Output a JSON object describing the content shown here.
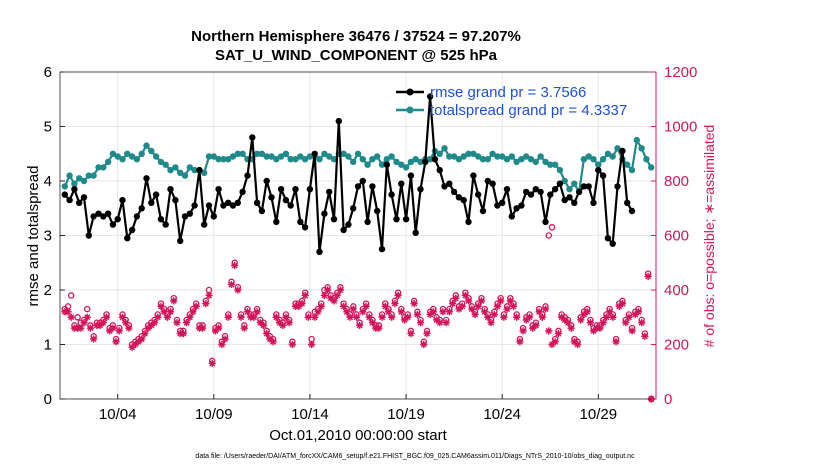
{
  "chart_data": {
    "type": "line",
    "title": "Northern Hemisphere 36476 / 37524 = 97.207%",
    "subtitle": "SAT_U_WIND_COMPONENT @ 525 hPa",
    "xlabel": "Oct.01,2010 00:00:00 start",
    "ylabel": "rmse and totalspread",
    "y2label": "# of obs: o=possible; ∗=assimilated",
    "footnote": "data file: /Users/raeder/DAI/ATM_forcXX/CAM6_setup/f.e21.FHIST_BGC.f09_025.CAM6assim.011/Diags_NTrS_2010-10/obs_diag_output.nc",
    "xlim": [
      1,
      32
    ],
    "ylim": [
      0,
      6
    ],
    "y2lim": [
      0,
      1200
    ],
    "x_ticks": [
      4,
      9,
      14,
      19,
      24,
      29
    ],
    "x_tick_labels": [
      "10/04",
      "10/09",
      "10/14",
      "10/19",
      "10/24",
      "10/29"
    ],
    "y_ticks": [
      0,
      1,
      2,
      3,
      4,
      5,
      6
    ],
    "y2_ticks": [
      0,
      200,
      400,
      600,
      800,
      1000,
      1200
    ],
    "grid": true,
    "legend_position": "top-right",
    "x_start": 1.25,
    "x_step": 0.25,
    "series": [
      {
        "name": "rmse grand pr = 3.7566",
        "color": "#000000",
        "marker": "filled-circle",
        "axis": "left",
        "values": [
          3.75,
          3.65,
          3.85,
          3.6,
          3.7,
          3.0,
          3.35,
          3.4,
          3.35,
          3.4,
          3.2,
          3.3,
          3.65,
          2.95,
          3.1,
          3.35,
          3.5,
          4.05,
          3.6,
          3.75,
          3.3,
          3.2,
          3.85,
          3.65,
          2.9,
          3.35,
          3.4,
          3.55,
          4.2,
          3.2,
          3.55,
          3.35,
          3.85,
          3.55,
          3.6,
          3.55,
          3.6,
          3.8,
          4.1,
          4.8,
          3.6,
          3.45,
          4.0,
          3.7,
          3.25,
          3.85,
          3.65,
          3.55,
          3.85,
          3.25,
          3.15,
          3.85,
          4.5,
          2.7,
          3.4,
          3.8,
          3.3,
          5.1,
          3.1,
          3.2,
          3.5,
          3.9,
          4.0,
          3.25,
          3.9,
          3.45,
          2.75,
          4.3,
          3.75,
          3.3,
          3.95,
          3.3,
          4.1,
          3.05,
          3.85,
          4.35,
          5.55,
          4.4,
          4.2,
          3.9,
          3.95,
          3.8,
          3.7,
          3.65,
          3.25,
          4.1,
          3.75,
          3.45,
          4.0,
          3.95,
          3.55,
          3.6,
          3.85,
          3.35,
          3.5,
          3.55,
          3.8,
          3.75,
          3.85,
          3.8,
          3.25,
          3.75,
          3.85,
          3.95,
          3.65,
          3.7,
          3.6,
          3.8,
          3.9,
          3.9,
          3.6,
          4.2,
          4.1,
          2.95,
          2.85,
          3.9,
          4.55,
          3.6,
          3.45
        ]
      },
      {
        "name": "totalspread grand pr = 4.3337",
        "color": "#1e8a8a",
        "marker": "filled-circle",
        "axis": "left",
        "values": [
          3.9,
          4.1,
          3.95,
          4.05,
          4.0,
          4.1,
          4.1,
          4.25,
          4.25,
          4.35,
          4.5,
          4.45,
          4.4,
          4.5,
          4.45,
          4.4,
          4.5,
          4.65,
          4.55,
          4.45,
          4.35,
          4.3,
          4.2,
          4.25,
          4.15,
          4.1,
          4.25,
          4.2,
          4.2,
          4.15,
          4.45,
          4.45,
          4.4,
          4.4,
          4.4,
          4.45,
          4.5,
          4.5,
          4.4,
          4.4,
          4.5,
          4.5,
          4.45,
          4.45,
          4.4,
          4.45,
          4.5,
          4.4,
          4.4,
          4.45,
          4.4,
          4.45,
          4.45,
          4.4,
          4.5,
          4.45,
          4.4,
          4.5,
          4.5,
          4.45,
          4.35,
          4.5,
          4.4,
          4.3,
          4.4,
          4.45,
          4.3,
          4.4,
          4.45,
          4.35,
          4.3,
          4.25,
          4.35,
          4.4,
          4.35,
          4.4,
          4.4,
          4.55,
          4.5,
          4.6,
          4.45,
          4.45,
          4.4,
          4.45,
          4.5,
          4.5,
          4.45,
          4.4,
          4.4,
          4.5,
          4.45,
          4.45,
          4.4,
          4.45,
          4.35,
          4.4,
          4.45,
          4.4,
          4.35,
          4.45,
          4.35,
          4.3,
          4.3,
          4.2,
          4.0,
          3.85,
          3.95,
          3.8,
          4.4,
          4.45,
          4.4,
          4.3,
          4.4,
          4.5,
          4.45,
          4.6,
          4.4,
          4.3,
          4.2,
          4.75,
          4.6,
          4.4,
          4.25
        ]
      },
      {
        "name": "# of obs assimilated",
        "color": "#d4145a",
        "marker": "asterisk",
        "axis": "right",
        "values": [
          320,
          320,
          300,
          260,
          260,
          260,
          280,
          300,
          260,
          220,
          270,
          270,
          280,
          300,
          250,
          260,
          210,
          250,
          300,
          280,
          260,
          190,
          200,
          210,
          220,
          240,
          260,
          270,
          280,
          300,
          340,
          320,
          300,
          320,
          360,
          280,
          240,
          240,
          280,
          300,
          320,
          340,
          260,
          260,
          350,
          380,
          130,
          250,
          260,
          200,
          220,
          300,
          420,
          490,
          400,
          300,
          260,
          320,
          300,
          300,
          320,
          280,
          270,
          240,
          220,
          210,
          300,
          280,
          270,
          300,
          280,
          200,
          340,
          340,
          350,
          380,
          300,
          200,
          300,
          320,
          340,
          380,
          400,
          370,
          360,
          380,
          400,
          340,
          320,
          300,
          330,
          300,
          270,
          320,
          340,
          300,
          280,
          260,
          260,
          300,
          340,
          320,
          300,
          350,
          380,
          320,
          290,
          300,
          240,
          350,
          310,
          280,
          200,
          240,
          310,
          320,
          290,
          280,
          320,
          280,
          320,
          350,
          370,
          330,
          340,
          380,
          360,
          330,
          310,
          340,
          360,
          320,
          300,
          280,
          310,
          340,
          360,
          300,
          330,
          360,
          340,
          300,
          210,
          250,
          290,
          300,
          260,
          270,
          320,
          300,
          330,
          250,
          200,
          210,
          240,
          300,
          290,
          280,
          260,
          210,
          200,
          290,
          310,
          320,
          280,
          250,
          260,
          260,
          280,
          300,
          320,
          300,
          210,
          340,
          350,
          280,
          300,
          250,
          310,
          320,
          280,
          230,
          450,
          0
        ],
        "x_start": 1.25,
        "x_step": 0.1667
      },
      {
        "name": "# of obs possible",
        "color": "#d4145a",
        "marker": "open-circle",
        "axis": "right",
        "values": [
          330,
          340,
          380,
          270,
          300,
          280,
          290,
          330,
          270,
          230,
          280,
          280,
          290,
          310,
          260,
          270,
          220,
          260,
          310,
          290,
          270,
          200,
          210,
          220,
          230,
          250,
          270,
          280,
          290,
          310,
          350,
          330,
          310,
          330,
          370,
          290,
          250,
          250,
          290,
          310,
          330,
          350,
          270,
          270,
          360,
          400,
          140,
          260,
          270,
          210,
          230,
          310,
          430,
          500,
          410,
          310,
          270,
          330,
          310,
          310,
          330,
          290,
          280,
          250,
          230,
          220,
          310,
          290,
          280,
          310,
          290,
          210,
          350,
          350,
          360,
          390,
          310,
          220,
          320,
          330,
          350,
          400,
          410,
          380,
          370,
          390,
          410,
          350,
          330,
          310,
          340,
          310,
          280,
          330,
          350,
          310,
          290,
          270,
          270,
          310,
          350,
          330,
          310,
          360,
          390,
          330,
          300,
          310,
          250,
          360,
          320,
          290,
          210,
          250,
          320,
          330,
          300,
          290,
          330,
          290,
          330,
          360,
          380,
          340,
          350,
          390,
          370,
          340,
          320,
          350,
          370,
          330,
          310,
          290,
          320,
          350,
          370,
          310,
          340,
          370,
          350,
          310,
          220,
          260,
          300,
          310,
          270,
          280,
          330,
          310,
          340,
          600,
          630,
          220,
          250,
          310,
          300,
          290,
          270,
          220,
          210,
          300,
          320,
          330,
          290,
          260,
          270,
          270,
          290,
          310,
          330,
          310,
          220,
          350,
          360,
          290,
          310,
          260,
          320,
          330,
          290,
          240,
          460,
          0
        ],
        "x_start": 1.25,
        "x_step": 0.1667
      }
    ]
  }
}
